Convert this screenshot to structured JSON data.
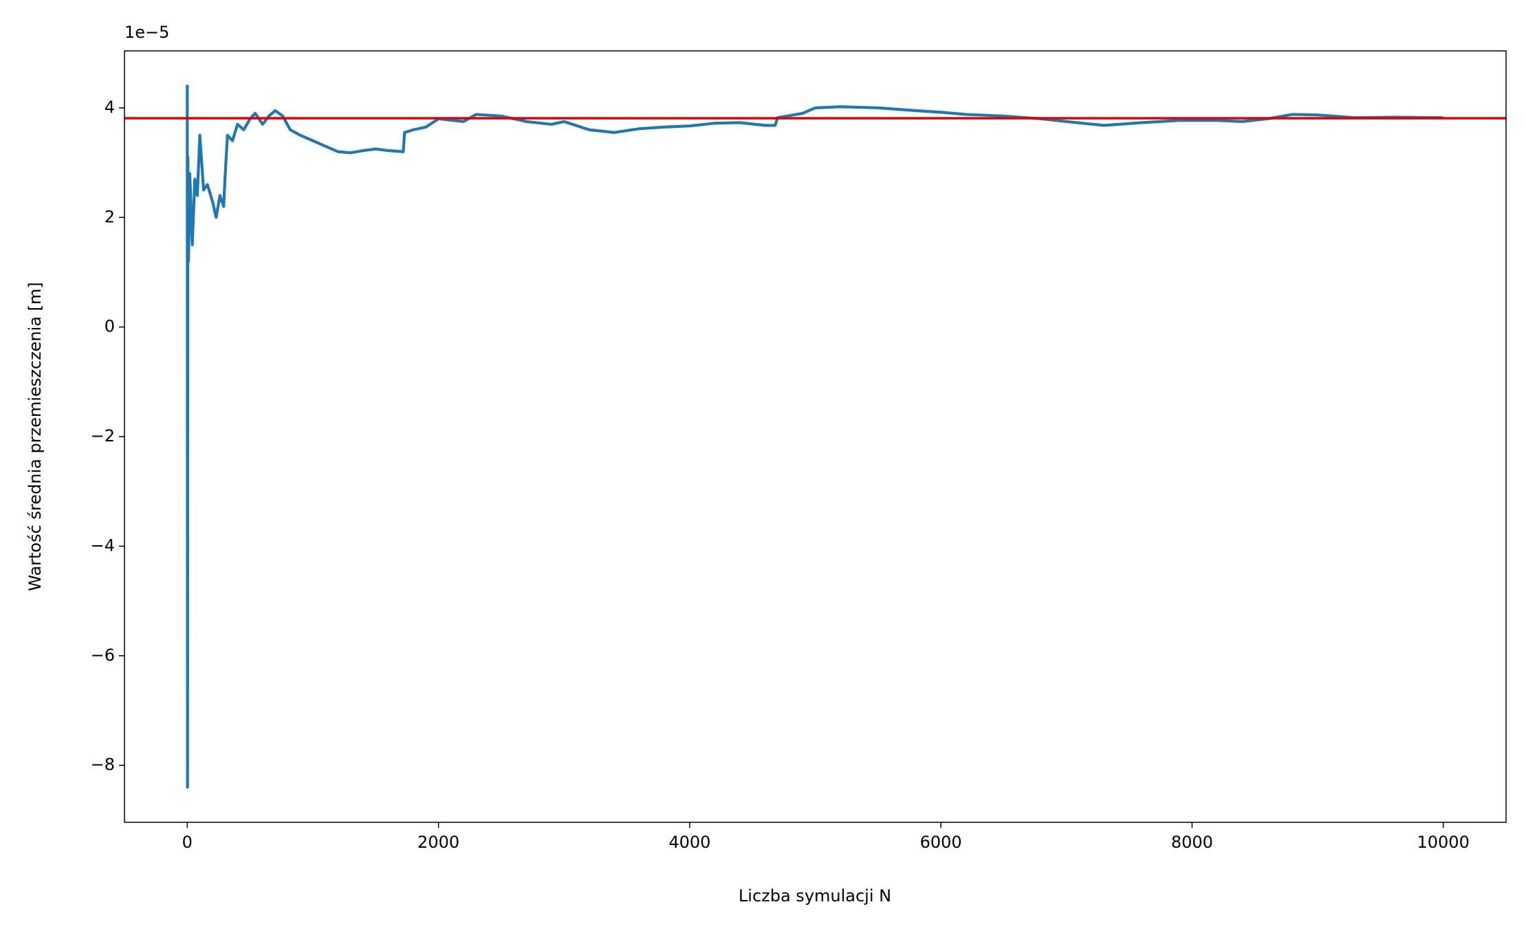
{
  "chart_data": {
    "type": "line",
    "offset_label": "1e−5",
    "x_label": "Liczba symulacji N",
    "y_label": "Wartość średnia przemieszczenia [m]",
    "x": [
      0,
      2,
      5,
      10,
      20,
      40,
      60,
      80,
      100,
      130,
      160,
      200,
      230,
      260,
      290,
      300,
      320,
      360,
      400,
      450,
      500,
      540,
      600,
      650,
      700,
      760,
      820,
      900,
      1000,
      1100,
      1200,
      1300,
      1400,
      1500,
      1600,
      1720,
      1730,
      1800,
      1900,
      2000,
      2200,
      2300,
      2500,
      2700,
      2900,
      3000,
      3200,
      3400,
      3600,
      3800,
      4000,
      4200,
      4400,
      4600,
      4680,
      4700,
      4900,
      5000,
      5200,
      5500,
      5800,
      6000,
      6200,
      6500,
      6800,
      7000,
      7300,
      7600,
      7900,
      8200,
      8400,
      8600,
      8800,
      9000,
      9300,
      9600,
      10000
    ],
    "series": [
      {
        "color": "#1f77b4",
        "values": [
          4.42,
          -8.4,
          3.1,
          1.2,
          2.8,
          1.5,
          2.7,
          2.4,
          3.5,
          2.5,
          2.6,
          2.3,
          2.0,
          2.4,
          2.2,
          2.7,
          3.5,
          3.4,
          3.7,
          3.6,
          3.8,
          3.9,
          3.7,
          3.85,
          3.95,
          3.85,
          3.6,
          3.5,
          3.4,
          3.3,
          3.2,
          3.18,
          3.22,
          3.25,
          3.22,
          3.2,
          3.55,
          3.6,
          3.65,
          3.8,
          3.75,
          3.88,
          3.85,
          3.75,
          3.7,
          3.75,
          3.6,
          3.55,
          3.62,
          3.65,
          3.67,
          3.72,
          3.73,
          3.68,
          3.68,
          3.82,
          3.9,
          4.0,
          4.02,
          4.0,
          3.95,
          3.92,
          3.88,
          3.85,
          3.8,
          3.75,
          3.68,
          3.73,
          3.77,
          3.77,
          3.75,
          3.8,
          3.88,
          3.87,
          3.82,
          3.83,
          3.82
        ]
      }
    ],
    "reference_line": {
      "value": 3.81,
      "color": "#e00000"
    },
    "xlim": [
      -500,
      10500
    ],
    "ylim": [
      -9.04,
      5.04
    ],
    "xticks": [
      0,
      2000,
      4000,
      6000,
      8000,
      10000
    ],
    "yticks": [
      {
        "value": -8,
        "label": "−8"
      },
      {
        "value": -6,
        "label": "−6"
      },
      {
        "value": -4,
        "label": "−4"
      },
      {
        "value": -2,
        "label": "−2"
      },
      0,
      2,
      4
    ]
  }
}
